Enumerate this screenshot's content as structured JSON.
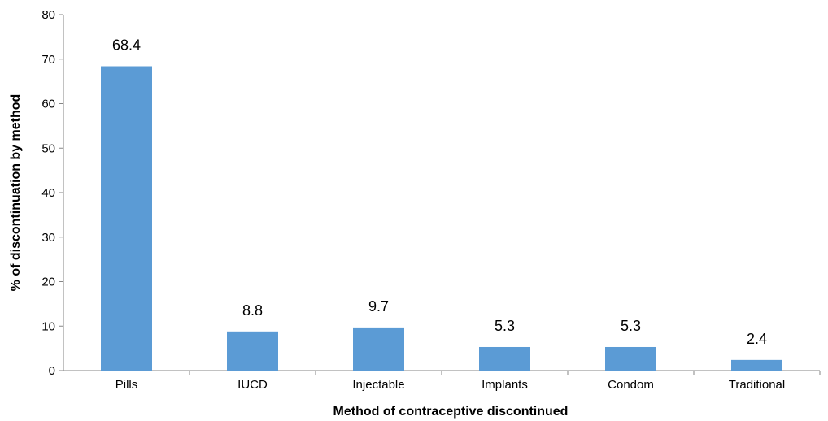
{
  "chart_data": {
    "type": "bar",
    "title": "",
    "xlabel": "Method of contraceptive discontinued",
    "ylabel": "% of discontinuation by method",
    "categories": [
      "Pills",
      "IUCD",
      "Injectable",
      "Implants",
      "Condom",
      "Traditional"
    ],
    "values": [
      68.4,
      8.8,
      9.7,
      5.3,
      5.3,
      2.4
    ],
    "data_labels": [
      "68.4",
      "8.8",
      "9.7",
      "5.3",
      "5.3",
      "2.4"
    ],
    "ylim": [
      0,
      80
    ],
    "yticks": [
      0,
      10,
      20,
      30,
      40,
      50,
      60,
      70,
      80
    ],
    "grid": false,
    "legend": "none",
    "bar_color": "#5b9bd5",
    "axis_color": "#868686"
  }
}
